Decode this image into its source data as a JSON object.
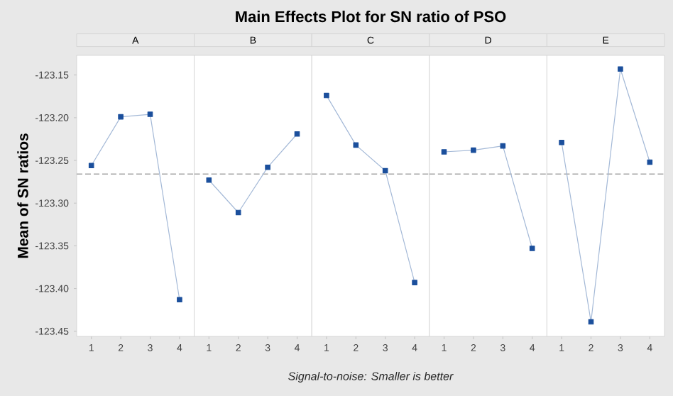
{
  "chart_data": [
    {
      "type": "line",
      "title": "A",
      "ylabel": "Mean of SN ratios",
      "annotations": [
        "Main Effects Plot for SN ratio of PSO",
        "Signal-to-noise: Smaller is better"
      ],
      "categories": [
        "1",
        "2",
        "3",
        "4"
      ],
      "values": [
        -123.256,
        -123.199,
        -123.196,
        -123.413
      ],
      "color": "#1b4f9c",
      "marker": "square",
      "line_style": "solid",
      "ylim": [
        -123.456,
        -123.127
      ],
      "yticks": [
        {
          "value": -123.15,
          "label": "-123.15"
        },
        {
          "value": -123.2,
          "label": "-123.20"
        },
        {
          "value": -123.25,
          "label": "-123.25"
        },
        {
          "value": -123.3,
          "label": "-123.30"
        },
        {
          "value": -123.35,
          "label": "-123.35"
        },
        {
          "value": -123.4,
          "label": "-123.40"
        },
        {
          "value": -123.45,
          "label": "-123.45"
        }
      ],
      "ref_lines": [
        {
          "axis": "y",
          "value": -123.266,
          "color": "#a6a6a6",
          "line_style": "dashed"
        }
      ]
    },
    {
      "type": "line",
      "title": "B",
      "categories": [
        "1",
        "2",
        "3",
        "4"
      ],
      "values": [
        -123.273,
        -123.311,
        -123.258,
        -123.219
      ],
      "color": "#1b4f9c",
      "marker": "square",
      "line_style": "solid",
      "ylim": [
        -123.456,
        -123.127
      ],
      "tick_labels": "x",
      "ref_lines": [
        {
          "axis": "y",
          "value": -123.266,
          "color": "#a6a6a6",
          "line_style": "dashed"
        }
      ]
    },
    {
      "type": "line",
      "title": "C",
      "categories": [
        "1",
        "2",
        "3",
        "4"
      ],
      "values": [
        -123.174,
        -123.232,
        -123.262,
        -123.393
      ],
      "color": "#1b4f9c",
      "marker": "square",
      "line_style": "solid",
      "ylim": [
        -123.456,
        -123.127
      ],
      "tick_labels": "x",
      "ref_lines": [
        {
          "axis": "y",
          "value": -123.266,
          "color": "#a6a6a6",
          "line_style": "dashed"
        }
      ]
    },
    {
      "type": "line",
      "title": "D",
      "categories": [
        "1",
        "2",
        "3",
        "4"
      ],
      "values": [
        -123.24,
        -123.238,
        -123.233,
        -123.353
      ],
      "color": "#1b4f9c",
      "marker": "square",
      "line_style": "solid",
      "ylim": [
        -123.456,
        -123.127
      ],
      "tick_labels": "x",
      "ref_lines": [
        {
          "axis": "y",
          "value": -123.266,
          "color": "#a6a6a6",
          "line_style": "dashed"
        }
      ]
    },
    {
      "type": "line",
      "title": "E",
      "categories": [
        "1",
        "2",
        "3",
        "4"
      ],
      "values": [
        -123.229,
        -123.439,
        -123.143,
        -123.252
      ],
      "color": "#1b4f9c",
      "marker": "square",
      "line_style": "solid",
      "ylim": [
        -123.456,
        -123.127
      ],
      "tick_labels": "x",
      "ref_lines": [
        {
          "axis": "y",
          "value": -123.266,
          "color": "#a6a6a6",
          "line_style": "dashed"
        }
      ]
    }
  ]
}
